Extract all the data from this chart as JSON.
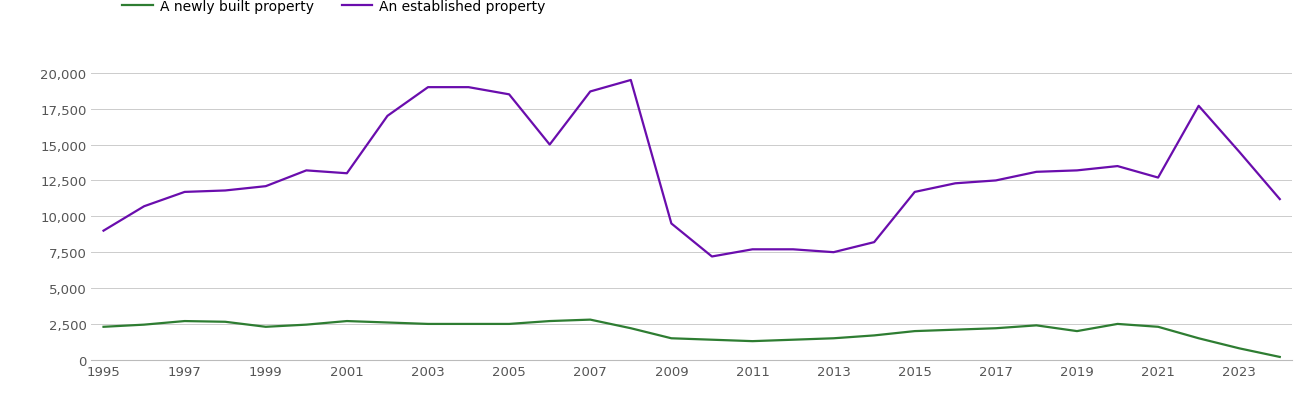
{
  "years": [
    1995,
    1996,
    1997,
    1998,
    1999,
    2000,
    2001,
    2002,
    2003,
    2004,
    2005,
    2006,
    2007,
    2008,
    2009,
    2010,
    2011,
    2012,
    2013,
    2014,
    2015,
    2016,
    2017,
    2018,
    2019,
    2020,
    2021,
    2022,
    2023,
    2024
  ],
  "new_homes": [
    2300,
    2450,
    2700,
    2650,
    2300,
    2450,
    2700,
    2600,
    2500,
    2500,
    2500,
    2700,
    2800,
    2200,
    1500,
    1400,
    1300,
    1400,
    1500,
    1700,
    2000,
    2100,
    2200,
    2400,
    2000,
    2500,
    2300,
    1500,
    800,
    200
  ],
  "established_homes": [
    9000,
    10700,
    11700,
    11800,
    12100,
    13200,
    13000,
    17000,
    19000,
    19000,
    18500,
    15000,
    18700,
    19500,
    9500,
    7200,
    7700,
    7700,
    7500,
    8200,
    11700,
    12300,
    12500,
    13100,
    13200,
    13500,
    12700,
    17700,
    14500,
    11200
  ],
  "new_color": "#2e7d32",
  "established_color": "#6a0dad",
  "new_label": "A newly built property",
  "established_label": "An established property",
  "ylim": [
    0,
    20000
  ],
  "yticks": [
    0,
    2500,
    5000,
    7500,
    10000,
    12500,
    15000,
    17500,
    20000
  ],
  "xtick_years": [
    1995,
    1997,
    1999,
    2001,
    2003,
    2005,
    2007,
    2009,
    2011,
    2013,
    2015,
    2017,
    2019,
    2021,
    2023
  ],
  "bg_color": "#f5f5f5",
  "grid_color": "#cccccc",
  "line_width": 1.6,
  "tick_color": "#555555",
  "tick_fontsize": 9.5,
  "legend_fontsize": 10
}
